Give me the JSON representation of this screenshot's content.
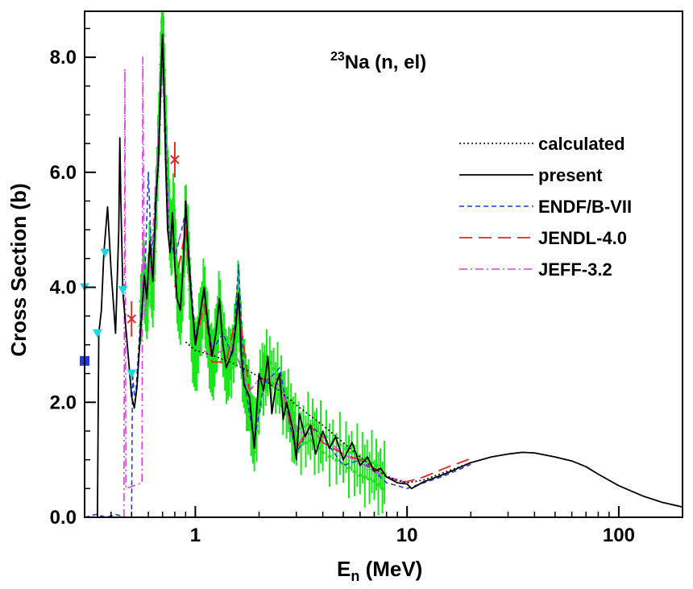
{
  "chart_data": {
    "type": "line",
    "xscale": "log",
    "xlim": [
      0.3,
      200
    ],
    "ylim": [
      0,
      8.8
    ],
    "xlabel_main": "E",
    "xlabel_sub": "n",
    "xlabel_rest": " (MeV)",
    "ylabel": "Cross Section (b)",
    "x_ticks": [
      {
        "value": 1,
        "label": "1"
      },
      {
        "value": 10,
        "label": "10"
      },
      {
        "value": 100,
        "label": "100"
      }
    ],
    "y_ticks": [
      {
        "value": 0,
        "label": "0.0"
      },
      {
        "value": 2,
        "label": "2.0"
      },
      {
        "value": 4,
        "label": "4.0"
      },
      {
        "value": 6,
        "label": "6.0"
      },
      {
        "value": 8,
        "label": "8.0"
      }
    ],
    "annotation": {
      "sup": "23",
      "text": "Na (n, el)"
    },
    "legend_position": "right",
    "series": [
      {
        "name": "calculated",
        "color": "#000000",
        "dash": "2,3",
        "width": 1.6,
        "points": [
          [
            0.9,
            3.05
          ],
          [
            1.0,
            2.9
          ],
          [
            1.2,
            2.82
          ],
          [
            1.5,
            2.68
          ],
          [
            2.0,
            2.45
          ],
          [
            2.5,
            2.2
          ],
          [
            3.0,
            1.95
          ],
          [
            4.0,
            1.6
          ],
          [
            5.0,
            1.3
          ],
          [
            6.0,
            1.05
          ],
          [
            7.0,
            0.85
          ],
          [
            8.0,
            0.72
          ],
          [
            9.0,
            0.64
          ],
          [
            10.0,
            0.6
          ],
          [
            12.0,
            0.65
          ],
          [
            15.0,
            0.78
          ],
          [
            20.0,
            0.95
          ]
        ]
      },
      {
        "name": "present",
        "color": "#000000",
        "dash": "",
        "width": 1.8,
        "points": [
          [
            0.33,
            0.0
          ],
          [
            0.345,
            0.0
          ],
          [
            0.35,
            3.2
          ],
          [
            0.36,
            3.6
          ],
          [
            0.37,
            4.6
          ],
          [
            0.385,
            5.4
          ],
          [
            0.4,
            4.3
          ],
          [
            0.42,
            3.2
          ],
          [
            0.435,
            5.0
          ],
          [
            0.44,
            6.6
          ],
          [
            0.445,
            5.5
          ],
          [
            0.455,
            3.9
          ],
          [
            0.475,
            3.1
          ],
          [
            0.49,
            2.5
          ],
          [
            0.5,
            2.1
          ],
          [
            0.515,
            1.9
          ],
          [
            0.53,
            2.25
          ],
          [
            0.55,
            3.2
          ],
          [
            0.575,
            4.2
          ],
          [
            0.59,
            3.8
          ],
          [
            0.61,
            4.8
          ],
          [
            0.63,
            4.1
          ],
          [
            0.65,
            5.5
          ],
          [
            0.67,
            6.2
          ],
          [
            0.69,
            7.8
          ],
          [
            0.7,
            8.4
          ],
          [
            0.71,
            7.6
          ],
          [
            0.725,
            6.1
          ],
          [
            0.74,
            5.0
          ],
          [
            0.76,
            4.6
          ],
          [
            0.78,
            5.3
          ],
          [
            0.8,
            4.4
          ],
          [
            0.82,
            3.8
          ],
          [
            0.85,
            3.6
          ],
          [
            0.88,
            4.5
          ],
          [
            0.9,
            5.5
          ],
          [
            0.92,
            4.8
          ],
          [
            0.95,
            4.0
          ],
          [
            1.0,
            3.0
          ],
          [
            1.05,
            3.5
          ],
          [
            1.1,
            4.0
          ],
          [
            1.15,
            3.3
          ],
          [
            1.2,
            2.8
          ],
          [
            1.25,
            3.2
          ],
          [
            1.3,
            3.8
          ],
          [
            1.35,
            3.0
          ],
          [
            1.4,
            2.6
          ],
          [
            1.5,
            2.9
          ],
          [
            1.55,
            3.3
          ],
          [
            1.6,
            3.9
          ],
          [
            1.65,
            2.8
          ],
          [
            1.7,
            2.3
          ],
          [
            1.8,
            2.1
          ],
          [
            1.9,
            1.2
          ],
          [
            2.0,
            2.5
          ],
          [
            2.1,
            2.2
          ],
          [
            2.2,
            2.8
          ],
          [
            2.3,
            1.8
          ],
          [
            2.4,
            2.3
          ],
          [
            2.5,
            2.5
          ],
          [
            2.6,
            1.7
          ],
          [
            2.7,
            2.0
          ],
          [
            2.9,
            1.5
          ],
          [
            3.0,
            1.0
          ],
          [
            3.1,
            1.8
          ],
          [
            3.3,
            1.4
          ],
          [
            3.5,
            1.6
          ],
          [
            3.7,
            1.1
          ],
          [
            4.0,
            1.5
          ],
          [
            4.3,
            1.2
          ],
          [
            4.6,
            1.4
          ],
          [
            5.0,
            1.0
          ],
          [
            5.5,
            1.3
          ],
          [
            6.0,
            0.9
          ],
          [
            6.5,
            1.05
          ],
          [
            7.0,
            0.8
          ],
          [
            7.5,
            0.85
          ],
          [
            8.0,
            0.7
          ],
          [
            9.0,
            0.6
          ],
          [
            10.0,
            0.58
          ],
          [
            10.5,
            0.5
          ],
          [
            12.0,
            0.62
          ],
          [
            15.0,
            0.75
          ],
          [
            20.0,
            0.95
          ],
          [
            25.0,
            1.05
          ],
          [
            30.0,
            1.1
          ],
          [
            35.0,
            1.13
          ],
          [
            40.0,
            1.12
          ],
          [
            50.0,
            1.05
          ],
          [
            60.0,
            0.98
          ],
          [
            70.0,
            0.88
          ],
          [
            80.0,
            0.75
          ],
          [
            100.0,
            0.55
          ],
          [
            130.0,
            0.37
          ],
          [
            160.0,
            0.26
          ],
          [
            200.0,
            0.18
          ]
        ]
      },
      {
        "name": "ENDF/B-VII",
        "color": "#1f3fd1",
        "dash": "6,4",
        "width": 1.6,
        "points": [
          [
            0.3,
            0.0
          ],
          [
            0.34,
            0.05
          ],
          [
            0.38,
            0.0
          ],
          [
            0.42,
            0.05
          ],
          [
            0.47,
            0.0
          ],
          [
            0.5,
            0.0
          ],
          [
            0.505,
            2.5
          ],
          [
            0.52,
            2.0
          ],
          [
            0.55,
            3.4
          ],
          [
            0.58,
            4.4
          ],
          [
            0.6,
            6.0
          ],
          [
            0.62,
            4.6
          ],
          [
            0.65,
            5.2
          ],
          [
            0.68,
            7.2
          ],
          [
            0.7,
            8.0
          ],
          [
            0.72,
            7.0
          ],
          [
            0.75,
            5.0
          ],
          [
            0.8,
            4.5
          ],
          [
            0.9,
            5.3
          ],
          [
            1.0,
            3.1
          ],
          [
            1.1,
            3.9
          ],
          [
            1.2,
            2.9
          ],
          [
            1.35,
            3.2
          ],
          [
            1.5,
            2.8
          ],
          [
            1.6,
            4.4
          ],
          [
            1.7,
            2.4
          ],
          [
            1.9,
            1.3
          ],
          [
            2.1,
            2.3
          ],
          [
            2.5,
            2.6
          ],
          [
            2.8,
            1.6
          ],
          [
            3.0,
            1.1
          ],
          [
            3.5,
            1.6
          ],
          [
            4.0,
            1.4
          ],
          [
            5.0,
            0.9
          ],
          [
            6.0,
            1.0
          ],
          [
            7.0,
            0.8
          ],
          [
            8.0,
            0.6
          ],
          [
            9.0,
            0.55
          ],
          [
            10.0,
            0.5
          ],
          [
            12.0,
            0.6
          ],
          [
            15.0,
            0.72
          ],
          [
            20.0,
            0.92
          ]
        ]
      },
      {
        "name": "JENDL-4.0",
        "color": "#e0272b",
        "dash": "16,8",
        "width": 1.8,
        "points": [
          [
            0.8,
            4.0
          ],
          [
            0.9,
            5.0
          ],
          [
            1.0,
            3.0
          ],
          [
            1.1,
            3.7
          ],
          [
            1.2,
            2.7
          ],
          [
            1.4,
            2.7
          ],
          [
            1.6,
            3.7
          ],
          [
            1.8,
            2.2
          ],
          [
            2.0,
            2.4
          ],
          [
            2.5,
            2.4
          ],
          [
            3.0,
            1.2
          ],
          [
            3.5,
            1.6
          ],
          [
            4.0,
            1.3
          ],
          [
            5.0,
            1.1
          ],
          [
            6.0,
            1.0
          ],
          [
            7.0,
            0.85
          ],
          [
            8.0,
            0.7
          ],
          [
            9.0,
            0.62
          ],
          [
            10.0,
            0.62
          ],
          [
            12.0,
            0.7
          ],
          [
            15.0,
            0.85
          ],
          [
            20.0,
            1.02
          ]
        ]
      },
      {
        "name": "JEFF-3.2",
        "color": "#e03ee0",
        "dash": "10,4,2,4",
        "width": 1.6,
        "points": [
          [
            0.46,
            0.0
          ],
          [
            0.465,
            7.8
          ],
          [
            0.47,
            0.5
          ],
          [
            0.56,
            0.6
          ],
          [
            0.565,
            8.0
          ],
          [
            0.575,
            3.5
          ],
          [
            0.62,
            4.5
          ],
          [
            0.7,
            7.8
          ],
          [
            0.75,
            5.0
          ],
          [
            0.8,
            4.6
          ],
          [
            0.9,
            5.2
          ],
          [
            1.0,
            3.0
          ],
          [
            1.2,
            2.8
          ],
          [
            1.5,
            3.0
          ],
          [
            1.8,
            2.2
          ],
          [
            2.0,
            2.4
          ],
          [
            2.5,
            2.3
          ],
          [
            3.0,
            1.5
          ],
          [
            4.0,
            1.4
          ],
          [
            5.0,
            1.1
          ],
          [
            6.0,
            0.95
          ],
          [
            7.0,
            0.8
          ],
          [
            8.0,
            0.7
          ],
          [
            10.0,
            0.62
          ]
        ]
      }
    ],
    "exp_green": {
      "color": "#19e619",
      "points": [
        [
          0.55,
          3.5
        ],
        [
          0.57,
          4.3
        ],
        [
          0.59,
          3.6
        ],
        [
          0.61,
          4.6
        ],
        [
          0.63,
          3.8
        ],
        [
          0.65,
          5.3
        ],
        [
          0.67,
          6.5
        ],
        [
          0.69,
          8.0
        ],
        [
          0.7,
          8.6
        ],
        [
          0.71,
          7.9
        ],
        [
          0.73,
          6.4
        ],
        [
          0.75,
          5.4
        ],
        [
          0.77,
          4.7
        ],
        [
          0.79,
          5.4
        ],
        [
          0.81,
          4.3
        ],
        [
          0.84,
          3.6
        ],
        [
          0.87,
          3.9
        ],
        [
          0.9,
          5.3
        ],
        [
          0.93,
          4.6
        ],
        [
          0.96,
          3.2
        ],
        [
          1.0,
          2.7
        ],
        [
          1.05,
          3.3
        ],
        [
          1.1,
          3.9
        ],
        [
          1.15,
          3.1
        ],
        [
          1.2,
          2.6
        ],
        [
          1.25,
          3.0
        ],
        [
          1.3,
          3.7
        ],
        [
          1.38,
          2.7
        ],
        [
          1.45,
          2.6
        ],
        [
          1.55,
          3.1
        ],
        [
          1.6,
          3.9
        ],
        [
          1.65,
          2.9
        ],
        [
          1.72,
          2.3
        ],
        [
          1.8,
          2.0
        ],
        [
          1.9,
          1.3
        ],
        [
          2.05,
          2.4
        ],
        [
          2.2,
          2.6
        ],
        [
          2.5,
          2.3
        ],
        [
          2.8,
          1.8
        ],
        [
          3.0,
          1.4
        ],
        [
          3.5,
          1.5
        ],
        [
          4.0,
          1.3
        ],
        [
          5.0,
          1.1
        ],
        [
          6.0,
          0.9
        ],
        [
          7.0,
          0.8
        ],
        [
          8.0,
          0.6
        ]
      ]
    },
    "exp_markers": [
      {
        "shape": "triangle",
        "color": "#22d3e0",
        "points": [
          [
            0.3,
            4.0
          ],
          [
            0.345,
            3.2
          ],
          [
            0.375,
            4.6
          ],
          [
            0.455,
            3.95
          ],
          [
            0.5,
            2.5
          ]
        ]
      },
      {
        "shape": "square",
        "color": "#1f3fd1",
        "points": [
          [
            0.3,
            2.72
          ]
        ]
      },
      {
        "shape": "cross",
        "color": "#e0272b",
        "points": [
          [
            0.5,
            3.45
          ],
          [
            0.8,
            6.22
          ]
        ]
      }
    ]
  }
}
